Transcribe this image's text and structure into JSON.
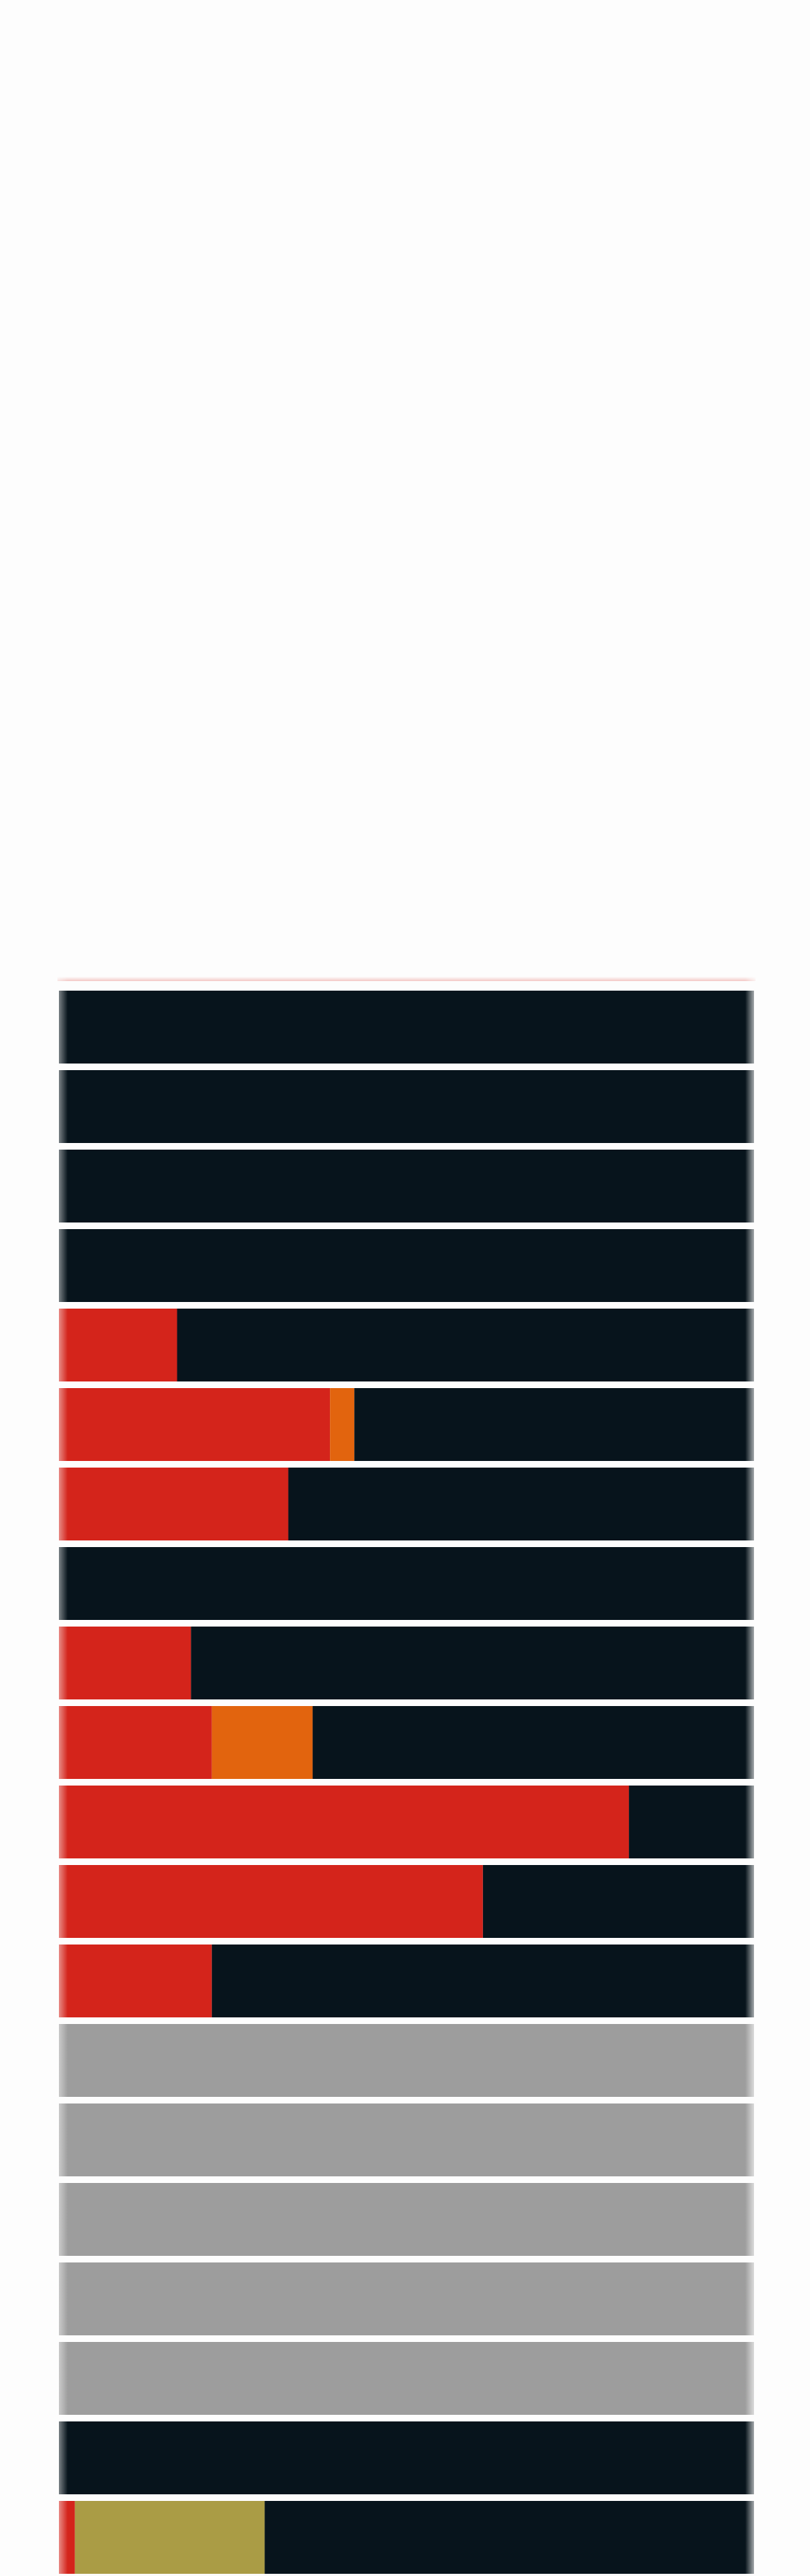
{
  "chart_data": {
    "type": "bar",
    "orientation": "horizontal",
    "stacked": true,
    "percent_scale": true,
    "xlim": [
      0,
      100
    ],
    "title": "",
    "xlabel": "",
    "ylabel": "",
    "grid": false,
    "categories": [
      "",
      "",
      "",
      "",
      "",
      "",
      "",
      "",
      "",
      "",
      "",
      "",
      "",
      "",
      "",
      "",
      "",
      "",
      "",
      ""
    ],
    "series": [
      {
        "color": "#d4241b",
        "values": [
          0,
          0,
          0,
          0,
          17,
          39,
          33,
          0,
          19,
          22,
          82,
          61,
          22,
          0,
          0,
          0,
          0,
          0,
          0,
          2.3
        ]
      },
      {
        "color": "#e2640e",
        "values": [
          0,
          0,
          0,
          0,
          0,
          3.5,
          0,
          0,
          0,
          14.5,
          0,
          0,
          0,
          0,
          0,
          0,
          0,
          0,
          0,
          0
        ]
      },
      {
        "color": "#aa9c45",
        "values": [
          0,
          0,
          0,
          0,
          0,
          0,
          0,
          0,
          0,
          0,
          0,
          0,
          0,
          0,
          0,
          0,
          0,
          0,
          0,
          27.3
        ]
      },
      {
        "color": "#9d9d9d",
        "values": [
          0,
          0,
          0,
          0,
          0,
          0,
          0,
          0,
          0,
          0,
          0,
          0,
          0,
          100,
          100,
          100,
          100,
          100,
          0,
          0
        ]
      },
      {
        "color": "#07141c",
        "values": [
          100,
          100,
          100,
          100,
          83,
          57.5,
          67,
          100,
          81,
          63.5,
          18,
          39,
          78,
          0,
          0,
          0,
          0,
          0,
          100,
          70.4
        ]
      }
    ]
  }
}
